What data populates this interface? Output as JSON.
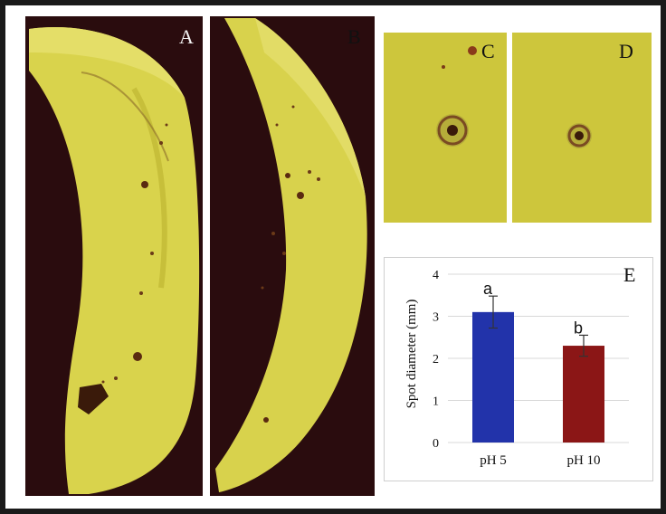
{
  "panels": {
    "a": {
      "label": "A"
    },
    "b": {
      "label": "B"
    },
    "c": {
      "label": "C"
    },
    "d": {
      "label": "D"
    },
    "e": {
      "label": "E"
    }
  },
  "colors": {
    "banana": "#d6d24a",
    "background": "#2a0c0e",
    "bar_ph5": "#2233aa",
    "bar_ph10": "#8b1616"
  },
  "chart_data": {
    "type": "bar",
    "categories": [
      "pH 5",
      "pH 10"
    ],
    "values": [
      3.1,
      2.3
    ],
    "errors": [
      0.38,
      0.25
    ],
    "significance_labels": [
      "a",
      "b"
    ],
    "ylabel": "Spot diameter (mm)",
    "xlabel": "",
    "ylim": [
      0,
      4
    ],
    "yticks": [
      0,
      1,
      2,
      3,
      4
    ],
    "grid": true,
    "bar_colors": [
      "#2233aa",
      "#8b1616"
    ]
  }
}
